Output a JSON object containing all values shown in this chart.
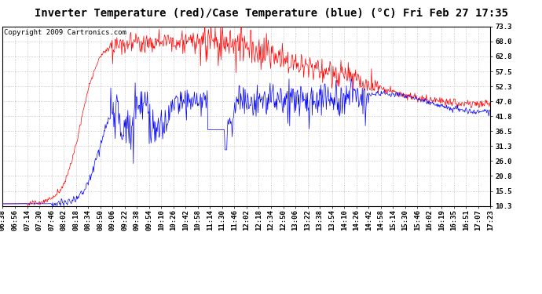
{
  "title": "Inverter Temperature (red)/Case Temperature (blue) (°C) Fri Feb 27 17:35",
  "copyright": "Copyright 2009 Cartronics.com",
  "yticks": [
    10.3,
    15.5,
    20.8,
    26.0,
    31.3,
    36.5,
    41.8,
    47.0,
    52.3,
    57.5,
    62.8,
    68.0,
    73.3
  ],
  "ymin": 10.3,
  "ymax": 73.3,
  "xtick_labels": [
    "06:38",
    "06:56",
    "07:14",
    "07:30",
    "07:46",
    "08:02",
    "08:18",
    "08:34",
    "08:50",
    "09:06",
    "09:22",
    "09:38",
    "09:54",
    "10:10",
    "10:26",
    "10:42",
    "10:58",
    "11:14",
    "11:30",
    "11:46",
    "12:02",
    "12:18",
    "12:34",
    "12:50",
    "13:06",
    "13:22",
    "13:38",
    "13:54",
    "14:10",
    "14:26",
    "14:42",
    "14:58",
    "15:14",
    "15:30",
    "15:46",
    "16:02",
    "16:19",
    "16:35",
    "16:51",
    "17:07",
    "17:23"
  ],
  "bg_color": "#ffffff",
  "plot_bg_color": "#ffffff",
  "grid_color": "#bbbbbb",
  "red_color": "#ff0000",
  "blue_color": "#0000ff",
  "title_fontsize": 10,
  "copyright_fontsize": 6.5,
  "tick_fontsize": 6.5
}
